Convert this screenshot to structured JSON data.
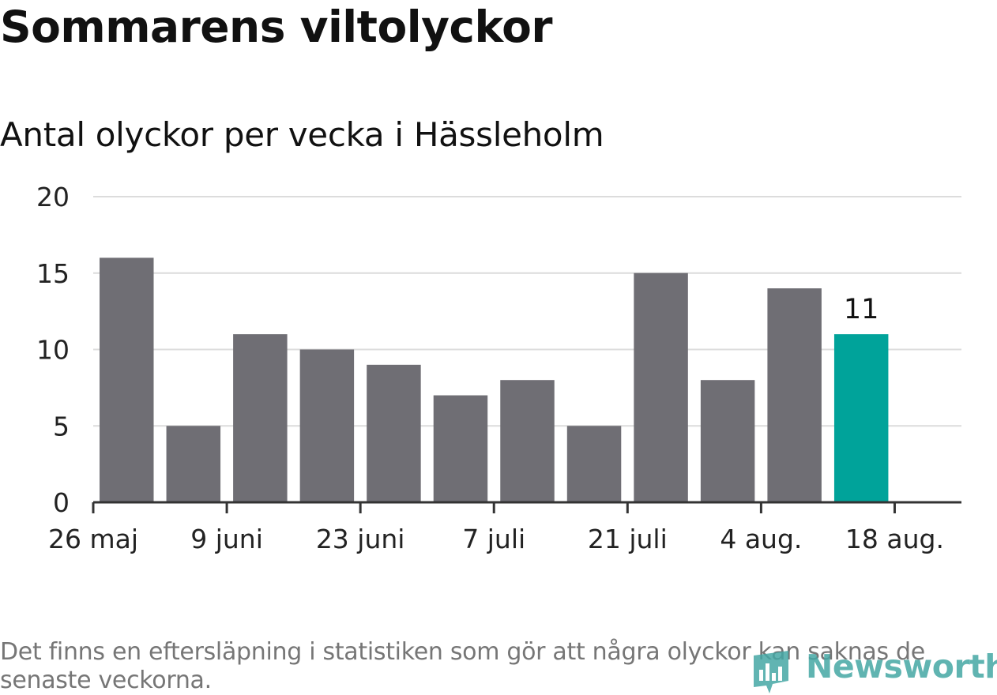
{
  "title": "Sommarens viltolyckor",
  "subtitle": "Antal olyckor per vecka i Hässleholm",
  "footnote": "Det finns en eftersläpning i statistiken som gör att några olyckor kan saknas de senaste veckorna.",
  "logo": {
    "text": "Newsworthy",
    "icon": "newsworthy-logo-icon"
  },
  "colors": {
    "bar": "#6f6e74",
    "highlight": "#00a39a",
    "grid": "#dcdcdc",
    "axis": "#333333"
  },
  "chart_data": {
    "type": "bar",
    "title": "Sommarens viltolyckor",
    "subtitle": "Antal olyckor per vecka i Hässleholm",
    "ylim": [
      0,
      20
    ],
    "yticks": [
      0,
      5,
      10,
      15,
      20
    ],
    "x_start": "2019-05-26",
    "x_end": "2019-08-25",
    "xticks": [
      {
        "date": "2019-05-26",
        "label": "26 maj"
      },
      {
        "date": "2019-06-09",
        "label": "9 juni"
      },
      {
        "date": "2019-06-23",
        "label": "23 juni"
      },
      {
        "date": "2019-07-07",
        "label": "7 juli"
      },
      {
        "date": "2019-07-21",
        "label": "21 juli"
      },
      {
        "date": "2019-08-04",
        "label": "4 aug."
      },
      {
        "date": "2019-08-18",
        "label": "18 aug."
      }
    ],
    "weeks": [
      "2019-06-02",
      "2019-06-09",
      "2019-06-16",
      "2019-06-23",
      "2019-06-30",
      "2019-07-07",
      "2019-07-14",
      "2019-07-21",
      "2019-07-28",
      "2019-08-04",
      "2019-08-11",
      "2019-08-18"
    ],
    "values": [
      16,
      5,
      11,
      10,
      9,
      7,
      8,
      5,
      15,
      8,
      14,
      11
    ],
    "highlight_index": 11,
    "data_labels": [
      {
        "index": 11,
        "text": "11"
      }
    ],
    "grid": true,
    "legend": "none"
  }
}
